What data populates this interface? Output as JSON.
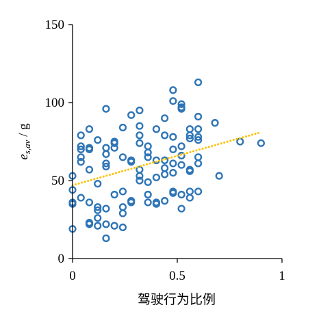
{
  "chart_data": {
    "type": "scatter",
    "xlabel": "驾驶行为比例",
    "ylabel": {
      "main": "e",
      "sub": "s,av",
      "unit": " / g"
    },
    "xlim": [
      0,
      1
    ],
    "ylim": [
      0,
      150
    ],
    "xticks": [
      {
        "value": 0,
        "label": "0"
      },
      {
        "value": 0.5,
        "label": "0.5"
      },
      {
        "value": 1,
        "label": "1"
      }
    ],
    "yticks": [
      {
        "value": 0,
        "label": "0"
      },
      {
        "value": 50,
        "label": "50"
      },
      {
        "value": 100,
        "label": "100"
      },
      {
        "value": 150,
        "label": "150"
      }
    ],
    "grid": false,
    "legend": "none",
    "series": [
      {
        "marker": "open-circle",
        "color": "#2e75b6",
        "points": [
          [
            0.0,
            53
          ],
          [
            0.0,
            44
          ],
          [
            0.0,
            36
          ],
          [
            0.0,
            35
          ],
          [
            0.0,
            19
          ],
          [
            0.04,
            79
          ],
          [
            0.04,
            72
          ],
          [
            0.04,
            70
          ],
          [
            0.04,
            65
          ],
          [
            0.04,
            62
          ],
          [
            0.04,
            39
          ],
          [
            0.08,
            83
          ],
          [
            0.08,
            71
          ],
          [
            0.08,
            70
          ],
          [
            0.08,
            57
          ],
          [
            0.08,
            36
          ],
          [
            0.08,
            23
          ],
          [
            0.08,
            22
          ],
          [
            0.12,
            76
          ],
          [
            0.12,
            48
          ],
          [
            0.12,
            33
          ],
          [
            0.12,
            31
          ],
          [
            0.12,
            26
          ],
          [
            0.12,
            21
          ],
          [
            0.16,
            96
          ],
          [
            0.16,
            71
          ],
          [
            0.16,
            67
          ],
          [
            0.16,
            61
          ],
          [
            0.16,
            59
          ],
          [
            0.16,
            32
          ],
          [
            0.16,
            22
          ],
          [
            0.16,
            13
          ],
          [
            0.2,
            75
          ],
          [
            0.2,
            74
          ],
          [
            0.2,
            71
          ],
          [
            0.2,
            41
          ],
          [
            0.2,
            21
          ],
          [
            0.24,
            84
          ],
          [
            0.24,
            65
          ],
          [
            0.24,
            43
          ],
          [
            0.24,
            33
          ],
          [
            0.24,
            29
          ],
          [
            0.24,
            20
          ],
          [
            0.28,
            92
          ],
          [
            0.28,
            63
          ],
          [
            0.28,
            62
          ],
          [
            0.28,
            37
          ],
          [
            0.28,
            36
          ],
          [
            0.32,
            95
          ],
          [
            0.32,
            85
          ],
          [
            0.32,
            79
          ],
          [
            0.32,
            74
          ],
          [
            0.32,
            57
          ],
          [
            0.32,
            53
          ],
          [
            0.32,
            50
          ],
          [
            0.36,
            72
          ],
          [
            0.36,
            68
          ],
          [
            0.36,
            65
          ],
          [
            0.36,
            49
          ],
          [
            0.36,
            41
          ],
          [
            0.36,
            36
          ],
          [
            0.4,
            83
          ],
          [
            0.4,
            63
          ],
          [
            0.4,
            52
          ],
          [
            0.4,
            36
          ],
          [
            0.4,
            35
          ],
          [
            0.44,
            90
          ],
          [
            0.44,
            79
          ],
          [
            0.44,
            63
          ],
          [
            0.44,
            58
          ],
          [
            0.44,
            54
          ],
          [
            0.44,
            37
          ],
          [
            0.48,
            108
          ],
          [
            0.48,
            101
          ],
          [
            0.48,
            78
          ],
          [
            0.48,
            70
          ],
          [
            0.48,
            61
          ],
          [
            0.48,
            55
          ],
          [
            0.48,
            43
          ],
          [
            0.48,
            42
          ],
          [
            0.52,
            99
          ],
          [
            0.52,
            97
          ],
          [
            0.52,
            96
          ],
          [
            0.52,
            72
          ],
          [
            0.52,
            66
          ],
          [
            0.52,
            60
          ],
          [
            0.52,
            41
          ],
          [
            0.52,
            32
          ],
          [
            0.56,
            83
          ],
          [
            0.56,
            79
          ],
          [
            0.56,
            77
          ],
          [
            0.56,
            57
          ],
          [
            0.56,
            56
          ],
          [
            0.56,
            43
          ],
          [
            0.56,
            39
          ],
          [
            0.6,
            113
          ],
          [
            0.6,
            91
          ],
          [
            0.6,
            83
          ],
          [
            0.6,
            78
          ],
          [
            0.6,
            76
          ],
          [
            0.6,
            65
          ],
          [
            0.6,
            61
          ],
          [
            0.6,
            43
          ],
          [
            0.68,
            87
          ],
          [
            0.7,
            53
          ],
          [
            0.8,
            75
          ],
          [
            0.9,
            74
          ]
        ]
      }
    ],
    "trendline": {
      "type": "linear",
      "style": "dotted",
      "color": "#ffc000",
      "x": [
        0,
        0.9
      ],
      "y": [
        47,
        81
      ]
    }
  }
}
